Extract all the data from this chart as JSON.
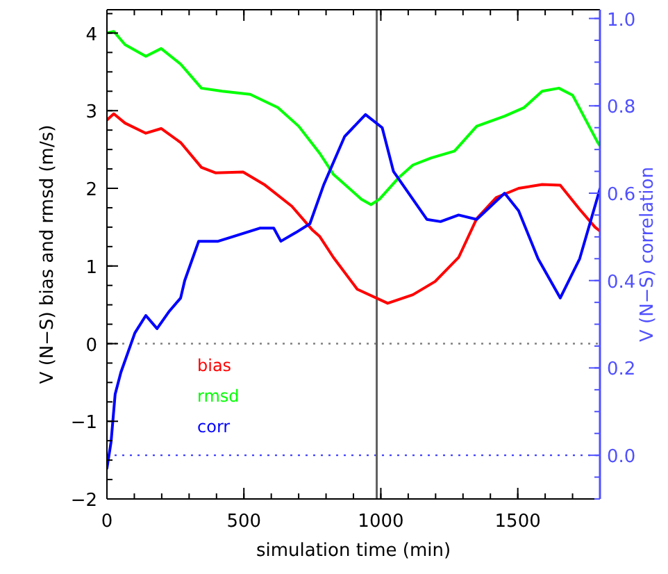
{
  "chart_data": {
    "type": "line",
    "xlabel": "simulation time (min)",
    "ylabel": "V (N−S) bias and rmsd (m/s)",
    "y2label": "V (N−S) correlation",
    "xlim": [
      0,
      1800
    ],
    "xticks": [
      0,
      500,
      1000,
      1500
    ],
    "ylim": [
      -2,
      4.3
    ],
    "yticks": [
      -2,
      -1,
      0,
      1,
      2,
      3,
      4
    ],
    "y2lim": [
      -0.1,
      1.02
    ],
    "y2ticks": [
      {
        "value": 0,
        "label": "0.0"
      },
      {
        "value": 0.2,
        "label": "0.2"
      },
      {
        "value": 0.4,
        "label": "0.4"
      },
      {
        "value": 0.6,
        "label": "0.6"
      },
      {
        "value": 0.8,
        "label": "0.8"
      },
      {
        "value": 1,
        "label": "1.0"
      }
    ],
    "legend": "bottom left",
    "grid": false,
    "line_style": "solid",
    "ref_lines": [
      {
        "axis": "y",
        "value": 0,
        "color": "#808080",
        "line_style": "dotted"
      },
      {
        "axis": "y2",
        "value": 0,
        "color": "#4040ff",
        "line_style": "dotted"
      },
      {
        "axis": "x",
        "value": 985,
        "color": "#606060",
        "line_style": "solid"
      }
    ],
    "series": [
      {
        "name": "bias",
        "color": "#ff0000",
        "x": [
          0,
          25,
          66,
          142,
          198,
          269,
          345,
          396,
          497,
          574,
          675,
          751,
          777,
          827,
          914,
          1025,
          1117,
          1198,
          1284,
          1350,
          1421,
          1503,
          1589,
          1655,
          1726,
          1782,
          1800
        ],
        "values": [
          2.88,
          2.96,
          2.84,
          2.71,
          2.77,
          2.59,
          2.27,
          2.2,
          2.21,
          2.05,
          1.77,
          1.46,
          1.38,
          1.11,
          0.7,
          0.52,
          0.63,
          0.8,
          1.11,
          1.61,
          1.88,
          2.0,
          2.05,
          2.04,
          1.73,
          1.5,
          1.45
        ]
      },
      {
        "name": "rmsd",
        "color": "#00ff00",
        "x": [
          0,
          25,
          66,
          142,
          198,
          269,
          345,
          421,
          523,
          624,
          700,
          777,
          827,
          929,
          964,
          995,
          1066,
          1117,
          1183,
          1269,
          1350,
          1452,
          1523,
          1589,
          1650,
          1700,
          1792,
          1800
        ],
        "values": [
          4.0,
          4.02,
          3.85,
          3.7,
          3.8,
          3.6,
          3.29,
          3.25,
          3.21,
          3.04,
          2.8,
          2.45,
          2.18,
          1.86,
          1.79,
          1.86,
          2.14,
          2.3,
          2.39,
          2.48,
          2.8,
          2.93,
          3.04,
          3.25,
          3.29,
          3.2,
          2.59,
          2.55
        ]
      },
      {
        "name": "corr",
        "color": "#0000ff",
        "axis": "y2",
        "x": [
          0,
          15,
          30,
          51,
          102,
          142,
          183,
          228,
          269,
          284,
          335,
          406,
          457,
          558,
          609,
          635,
          690,
          741,
          792,
          868,
          944,
          1005,
          1046,
          1168,
          1218,
          1284,
          1350,
          1452,
          1503,
          1574,
          1655,
          1726,
          1800
        ],
        "values": [
          -0.03,
          0.03,
          0.14,
          0.19,
          0.28,
          0.32,
          0.29,
          0.33,
          0.36,
          0.4,
          0.49,
          0.49,
          0.5,
          0.52,
          0.52,
          0.49,
          0.51,
          0.53,
          0.62,
          0.73,
          0.78,
          0.75,
          0.65,
          0.54,
          0.535,
          0.55,
          0.54,
          0.6,
          0.56,
          0.45,
          0.36,
          0.45,
          0.61
        ]
      }
    ]
  }
}
